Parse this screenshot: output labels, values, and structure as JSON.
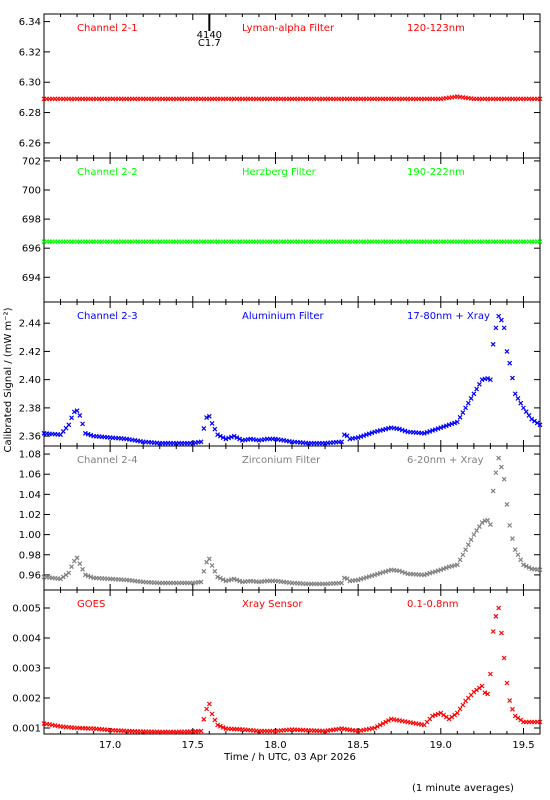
{
  "xaxis": {
    "label": "Time / h UTC, 03 Apr 2026",
    "range": [
      16.6,
      19.6
    ],
    "ticks": [
      "17.0",
      "17.5",
      "18.0",
      "18.5",
      "19.0",
      "19.5"
    ]
  },
  "ylabel": "Calibrated Signal / (mW m⁻²)",
  "footnote": "(1 minute averages)",
  "flare_marker": {
    "class": "C1.7",
    "id": "4140",
    "time": 17.6
  },
  "chart_data": [
    {
      "type": "scatter",
      "channel": "Channel 2-1",
      "filter": "Lyman-alpha Filter",
      "band": "120-123nm",
      "color": "#ff0000",
      "ylim": [
        6.25,
        6.345
      ],
      "yticks": [
        "6.26",
        "6.28",
        "6.30",
        "6.32",
        "6.34"
      ],
      "series": [
        {
          "x": [
            16.6,
            18.0,
            19.0,
            19.1,
            19.2,
            19.6
          ],
          "y": [
            6.289,
            6.289,
            6.289,
            6.2905,
            6.289,
            6.289
          ]
        }
      ]
    },
    {
      "type": "scatter",
      "channel": "Channel 2-2",
      "filter": "Herzberg Filter",
      "band": "190-222nm",
      "color": "#00ff00",
      "ylim": [
        692.3,
        702.2
      ],
      "yticks": [
        "694",
        "696",
        "698",
        "700",
        "702"
      ],
      "series": [
        {
          "x": [
            16.6,
            18.0,
            19.0,
            19.6
          ],
          "y": [
            696.45,
            696.45,
            696.45,
            696.45
          ]
        }
      ]
    },
    {
      "type": "scatter",
      "channel": "Channel 2-3",
      "filter": "Aluminium Filter",
      "band": "17-80nm + Xray",
      "color": "#0000ff",
      "ylim": [
        2.353,
        2.455
      ],
      "yticks": [
        "2.36",
        "2.38",
        "2.40",
        "2.42",
        "2.44"
      ],
      "series": [
        {
          "x": [
            16.6,
            16.7,
            16.75,
            16.78,
            16.8,
            16.82,
            16.85,
            16.9,
            17.0,
            17.1,
            17.2,
            17.3,
            17.4,
            17.5,
            17.55,
            17.58,
            17.6,
            17.62,
            17.65,
            17.7,
            17.75,
            17.8,
            17.85,
            17.9,
            17.95,
            18.0,
            18.1,
            18.2,
            18.3,
            18.4,
            18.42,
            18.45,
            18.5,
            18.6,
            18.7,
            18.75,
            18.8,
            18.9,
            19.0,
            19.05,
            19.1,
            19.15,
            19.2,
            19.25,
            19.28,
            19.3,
            19.32,
            19.35,
            19.38,
            19.4,
            19.42,
            19.45,
            19.5,
            19.55,
            19.6
          ],
          "y": [
            2.362,
            2.361,
            2.368,
            2.377,
            2.378,
            2.374,
            2.362,
            2.36,
            2.359,
            2.358,
            2.356,
            2.355,
            2.355,
            2.355,
            2.356,
            2.373,
            2.374,
            2.368,
            2.361,
            2.358,
            2.36,
            2.357,
            2.358,
            2.357,
            2.358,
            2.358,
            2.356,
            2.355,
            2.355,
            2.356,
            2.362,
            2.358,
            2.359,
            2.363,
            2.366,
            2.365,
            2.363,
            2.362,
            2.366,
            2.368,
            2.37,
            2.38,
            2.39,
            2.4,
            2.401,
            2.4,
            2.43,
            2.445,
            2.44,
            2.42,
            2.41,
            2.39,
            2.38,
            2.372,
            2.368
          ]
        }
      ]
    },
    {
      "type": "scatter",
      "channel": "Channel 2-4",
      "filter": "Zirconium Filter",
      "band": "6-20nm + Xray",
      "color": "#808080",
      "ylim": [
        0.945,
        1.088
      ],
      "yticks": [
        "0.96",
        "0.98",
        "1.00",
        "1.02",
        "1.04",
        "1.06",
        "1.08"
      ],
      "series": [
        {
          "x": [
            16.6,
            16.7,
            16.75,
            16.78,
            16.8,
            16.82,
            16.85,
            16.9,
            17.0,
            17.1,
            17.2,
            17.3,
            17.4,
            17.5,
            17.55,
            17.58,
            17.6,
            17.62,
            17.65,
            17.7,
            17.75,
            17.8,
            17.85,
            17.9,
            17.95,
            18.0,
            18.1,
            18.2,
            18.3,
            18.4,
            18.42,
            18.45,
            18.5,
            18.6,
            18.7,
            18.75,
            18.8,
            18.9,
            19.0,
            19.05,
            19.1,
            19.15,
            19.2,
            19.25,
            19.28,
            19.3,
            19.32,
            19.35,
            19.38,
            19.4,
            19.42,
            19.45,
            19.5,
            19.55,
            19.6
          ],
          "y": [
            0.958,
            0.956,
            0.962,
            0.973,
            0.977,
            0.97,
            0.96,
            0.957,
            0.956,
            0.955,
            0.953,
            0.952,
            0.952,
            0.952,
            0.953,
            0.972,
            0.976,
            0.968,
            0.958,
            0.954,
            0.956,
            0.953,
            0.954,
            0.953,
            0.954,
            0.954,
            0.952,
            0.951,
            0.951,
            0.952,
            0.958,
            0.954,
            0.955,
            0.96,
            0.965,
            0.964,
            0.961,
            0.96,
            0.965,
            0.968,
            0.97,
            0.985,
            1.0,
            1.012,
            1.015,
            1.01,
            1.05,
            1.076,
            1.06,
            1.03,
            1.005,
            0.985,
            0.97,
            0.966,
            0.965
          ]
        }
      ]
    },
    {
      "type": "scatter",
      "channel": "GOES",
      "filter": "Xray Sensor",
      "band": "0.1-0.8nm",
      "color": "#ff0000",
      "ylim": [
        0.0008,
        0.0056
      ],
      "yticks": [
        "0.001",
        "0.002",
        "0.003",
        "0.004",
        "0.005"
      ],
      "series": [
        {
          "x": [
            16.6,
            16.7,
            16.8,
            16.9,
            17.0,
            17.1,
            17.2,
            17.3,
            17.4,
            17.5,
            17.55,
            17.58,
            17.6,
            17.62,
            17.65,
            17.7,
            17.8,
            17.9,
            18.0,
            18.1,
            18.2,
            18.3,
            18.4,
            18.5,
            18.6,
            18.7,
            18.8,
            18.9,
            18.95,
            19.0,
            19.05,
            19.1,
            19.15,
            19.2,
            19.25,
            19.28,
            19.3,
            19.32,
            19.35,
            19.38,
            19.4,
            19.42,
            19.45,
            19.5,
            19.55,
            19.6
          ],
          "y": [
            0.00115,
            0.00105,
            0.001,
            0.00098,
            0.00093,
            0.0009,
            0.00088,
            0.00087,
            0.00087,
            0.00088,
            0.0009,
            0.0016,
            0.0018,
            0.0014,
            0.0011,
            0.00098,
            0.00095,
            0.0009,
            0.0009,
            0.00095,
            0.00092,
            0.0009,
            0.00098,
            0.0009,
            0.001,
            0.0013,
            0.0012,
            0.0011,
            0.0014,
            0.0015,
            0.0013,
            0.0015,
            0.0019,
            0.0022,
            0.0024,
            0.002,
            0.0028,
            0.0045,
            0.005,
            0.0035,
            0.0025,
            0.0018,
            0.0014,
            0.0012,
            0.0012,
            0.0012
          ]
        }
      ]
    }
  ]
}
